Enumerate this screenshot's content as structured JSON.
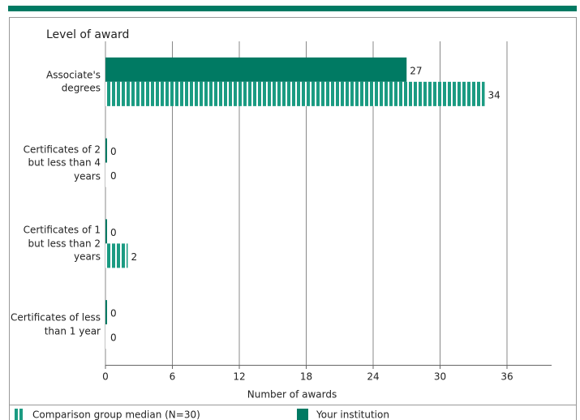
{
  "chart_data": {
    "type": "hbar",
    "title": "Level of award",
    "categories": [
      "Associate's degrees",
      "Certificates of 2 but less than 4 years",
      "Certificates of 1 but less than 2 years",
      "Certificates of less than 1 year"
    ],
    "series": [
      {
        "name": "Your institution",
        "color": "#007a63",
        "pattern": "solid",
        "values": [
          27,
          0,
          0,
          0
        ]
      },
      {
        "name": "Comparison group median (N=30)",
        "color": "#1b9b82",
        "pattern": "striped",
        "values": [
          34,
          0,
          2,
          0
        ]
      }
    ],
    "x_label": "Number of awards",
    "xlim": [
      0,
      40
    ],
    "xticks": [
      0,
      6,
      12,
      18,
      24,
      30,
      36
    ],
    "grid": true,
    "legend_order": [
      1,
      0
    ],
    "legend": "bottom"
  }
}
